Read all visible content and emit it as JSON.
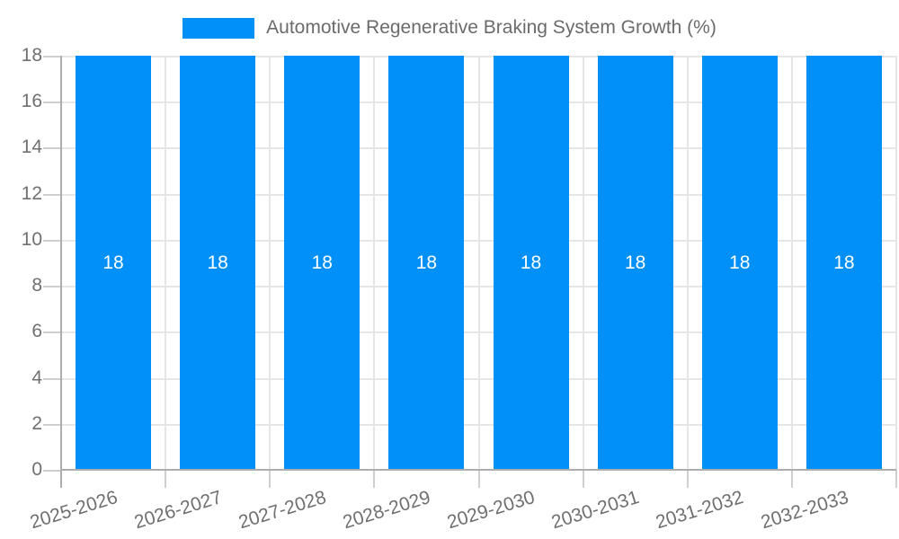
{
  "chart_data": {
    "type": "bar",
    "legend_label": "Automotive Regenerative Braking System Growth (%)",
    "categories": [
      "2025-2026",
      "2026-2027",
      "2027-2028",
      "2028-2029",
      "2029-2030",
      "2030-2031",
      "2031-2032",
      "2032-2033"
    ],
    "values": [
      18,
      18,
      18,
      18,
      18,
      18,
      18,
      18
    ],
    "y_ticks": [
      0,
      2,
      4,
      6,
      8,
      10,
      12,
      14,
      16,
      18
    ],
    "ylim": [
      0,
      18
    ],
    "xlabel": "",
    "ylabel": "",
    "grid": true,
    "legend_position": "top",
    "x_label_rotation_deg": -17,
    "colors": {
      "bar": "#0190F8",
      "bar_label": "#FFFFFF",
      "grid": "#E6E6E6",
      "tick": "#CFCFCF",
      "axis": "#ADADAD",
      "text": "#707070",
      "background": "#FFFFFF"
    }
  }
}
